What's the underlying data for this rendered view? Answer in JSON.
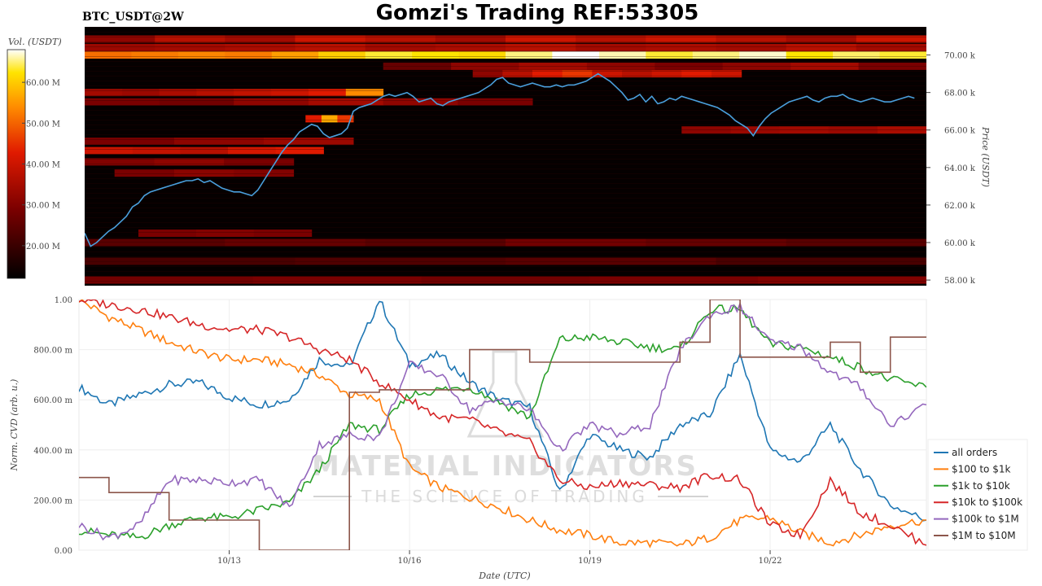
{
  "title": "Gomzi's Trading REF:53305",
  "pair_label": "BTC_USDT@2W",
  "watermark": {
    "main": "MATERIAL INDICATORS",
    "sub": "THE SCIENCE OF TRADING"
  },
  "colors": {
    "all orders": "#1f77b4",
    "$100 to $1k": "#ff7f0e",
    "$1k to $10k": "#2ca02c",
    "$10k to $100k": "#d62728",
    "$100k to $1M": "#9467bd",
    "$1M to $10M": "#8c564b",
    "price_line": "#4a9fdc"
  },
  "chart_data": [
    {
      "type": "heatmap",
      "colorbar_label": "Vol. (USDT)",
      "colorbar_ticks": [
        "20.00 M",
        "30.00 M",
        "40.00 M",
        "50.00 M",
        "60.00 M"
      ],
      "colorbar_range": [
        12,
        68
      ],
      "ylabel": "Price (USDT)",
      "y_ticks": [
        "58.00 k",
        "60.00 k",
        "62.00 k",
        "64.00 k",
        "66.00 k",
        "68.00 k",
        "70.00 k"
      ],
      "y_tick_values": [
        58000,
        60000,
        62000,
        64000,
        66000,
        68000,
        70000
      ],
      "ylim": [
        57700,
        71500
      ],
      "x_range_days": [
        10.5,
        24.6
      ],
      "price_series_x": [
        10.5,
        10.6,
        10.7,
        10.8,
        10.9,
        11.0,
        11.1,
        11.2,
        11.3,
        11.4,
        11.5,
        11.6,
        11.7,
        11.8,
        11.9,
        12.0,
        12.1,
        12.2,
        12.3,
        12.4,
        12.5,
        12.6,
        12.7,
        12.8,
        12.9,
        13.0,
        13.1,
        13.2,
        13.3,
        13.4,
        13.5,
        13.6,
        13.7,
        13.8,
        13.9,
        14.0,
        14.1,
        14.2,
        14.3,
        14.4,
        14.5,
        14.6,
        14.7,
        14.8,
        14.9,
        15.0,
        15.1,
        15.2,
        15.3,
        15.4,
        15.5,
        15.6,
        15.7,
        15.8,
        15.9,
        16.0,
        16.1,
        16.2,
        16.3,
        16.4,
        16.5,
        16.6,
        16.7,
        16.8,
        16.9,
        17.0,
        17.1,
        17.2,
        17.3,
        17.4,
        17.5,
        17.6,
        17.7,
        17.8,
        17.9,
        18.0,
        18.1,
        18.2,
        18.3,
        18.4,
        18.5,
        18.6,
        18.7,
        18.8,
        18.9,
        19.0,
        19.1,
        19.2,
        19.3,
        19.4,
        19.5,
        19.6,
        19.7,
        19.8,
        19.9,
        20.0,
        20.1,
        20.2,
        20.3,
        20.4,
        20.5,
        20.6,
        20.7,
        20.8,
        20.9,
        21.0,
        21.1,
        21.2,
        21.3,
        21.4,
        21.5,
        21.6,
        21.7,
        21.8,
        21.9,
        22.0,
        22.1,
        22.2,
        22.3,
        22.4,
        22.5,
        22.6,
        22.7,
        22.8,
        22.9,
        23.0,
        23.1,
        23.2,
        23.3,
        23.4,
        23.5,
        23.6,
        23.7,
        23.8,
        23.9,
        24.0,
        24.1,
        24.2,
        24.3,
        24.4,
        24.5,
        24.6
      ],
      "price_series_y": [
        60500,
        59800,
        60000,
        60300,
        60600,
        60800,
        61100,
        61400,
        61900,
        62100,
        62500,
        62700,
        62800,
        62900,
        63000,
        63100,
        63200,
        63300,
        63300,
        63400,
        63200,
        63300,
        63100,
        62900,
        62800,
        62700,
        62700,
        62600,
        62500,
        62800,
        63300,
        63800,
        64300,
        64800,
        65200,
        65500,
        65900,
        66100,
        66300,
        66200,
        65800,
        65600,
        65700,
        65800,
        66100,
        67000,
        67200,
        67300,
        67400,
        67600,
        67800,
        67900,
        67800,
        67900,
        68000,
        67800,
        67500,
        67600,
        67700,
        67400,
        67300,
        67500,
        67600,
        67700,
        67800,
        67900,
        68000,
        68200,
        68400,
        68700,
        68800,
        68500,
        68400,
        68300,
        68400,
        68500,
        68400,
        68300,
        68300,
        68400,
        68300,
        68400,
        68400,
        68500,
        68600,
        68800,
        69000,
        68800,
        68600,
        68300,
        68000,
        67600,
        67700,
        67900,
        67500,
        67800,
        67400,
        67500,
        67700,
        67600,
        67800,
        67700,
        67600,
        67500,
        67400,
        67300,
        67200,
        67000,
        66800,
        66500,
        66300,
        66100,
        65700,
        66200,
        66600,
        66900,
        67100,
        67300,
        67500,
        67600,
        67700,
        67800,
        67600,
        67500,
        67700,
        67800,
        67800,
        67900,
        67700,
        67600,
        67500,
        67600,
        67700,
        67600,
        67500,
        67500,
        67600,
        67700,
        67800,
        67700
      ]
    },
    {
      "type": "line",
      "xlabel": "Date (UTC)",
      "ylabel": "Norm. CVD (arb. u.)",
      "x_ticks": [
        "10/13",
        "10/16",
        "10/19",
        "10/22"
      ],
      "x_tick_values": [
        13,
        16,
        19,
        22
      ],
      "xlim": [
        10.5,
        24.6
      ],
      "y_ticks": [
        "0.00",
        "200.00 m",
        "400.00 m",
        "600.00 m",
        "800.00 m",
        "1.00"
      ],
      "y_tick_values": [
        0,
        0.2,
        0.4,
        0.6,
        0.8,
        1.0
      ],
      "ylim": [
        0,
        1.0
      ],
      "legend_position": "right",
      "x": [
        10.5,
        11.0,
        11.5,
        12.0,
        12.5,
        13.0,
        13.5,
        14.0,
        14.5,
        15.0,
        15.5,
        16.0,
        16.5,
        17.0,
        17.5,
        18.0,
        18.5,
        19.0,
        19.5,
        20.0,
        20.5,
        21.0,
        21.5,
        22.0,
        22.5,
        23.0,
        23.5,
        24.0,
        24.6
      ],
      "series": [
        {
          "name": "all orders",
          "values": [
            0.65,
            0.58,
            0.62,
            0.66,
            0.67,
            0.61,
            0.58,
            0.6,
            0.76,
            0.73,
            1.0,
            0.74,
            0.78,
            0.67,
            0.6,
            0.57,
            0.23,
            0.46,
            0.4,
            0.37,
            0.5,
            0.54,
            0.78,
            0.4,
            0.35,
            0.5,
            0.32,
            0.18,
            0.12
          ]
        },
        {
          "name": "$100 to $1k",
          "values": [
            1.0,
            0.93,
            0.88,
            0.83,
            0.79,
            0.76,
            0.76,
            0.74,
            0.7,
            0.62,
            0.6,
            0.33,
            0.25,
            0.21,
            0.17,
            0.12,
            0.08,
            0.06,
            0.03,
            0.03,
            0.02,
            0.05,
            0.12,
            0.13,
            0.07,
            0.03,
            0.06,
            0.1,
            0.12
          ]
        },
        {
          "name": "$1k to $10k",
          "values": [
            0.08,
            0.06,
            0.05,
            0.1,
            0.13,
            0.13,
            0.16,
            0.19,
            0.32,
            0.5,
            0.48,
            0.62,
            0.64,
            0.65,
            0.59,
            0.53,
            0.84,
            0.85,
            0.83,
            0.81,
            0.8,
            0.96,
            0.96,
            0.82,
            0.81,
            0.77,
            0.73,
            0.68,
            0.65
          ]
        },
        {
          "name": "$10k to $100k",
          "values": [
            1.0,
            0.98,
            0.96,
            0.93,
            0.9,
            0.88,
            0.88,
            0.85,
            0.8,
            0.76,
            0.67,
            0.6,
            0.53,
            0.52,
            0.47,
            0.43,
            0.28,
            0.25,
            0.27,
            0.26,
            0.25,
            0.3,
            0.28,
            0.1,
            0.06,
            0.28,
            0.15,
            0.1,
            0.02
          ]
        },
        {
          "name": "$100k to $1M",
          "values": [
            0.1,
            0.05,
            0.1,
            0.28,
            0.28,
            0.27,
            0.28,
            0.17,
            0.42,
            0.46,
            0.45,
            0.74,
            0.7,
            0.56,
            0.6,
            0.56,
            0.4,
            0.5,
            0.46,
            0.5,
            0.8,
            0.94,
            0.97,
            0.83,
            0.81,
            0.71,
            0.65,
            0.5,
            0.58
          ]
        },
        {
          "name": "$1M to $10M",
          "values": [
            0.29,
            0.23,
            0.23,
            0.12,
            0.12,
            0.12,
            0.0,
            0.0,
            0.0,
            0.63,
            0.64,
            0.64,
            0.64,
            0.8,
            0.8,
            0.75,
            0.75,
            0.75,
            0.75,
            0.75,
            0.83,
            1.0,
            0.77,
            0.77,
            0.77,
            0.83,
            0.71,
            0.85,
            0.85
          ]
        }
      ]
    }
  ]
}
